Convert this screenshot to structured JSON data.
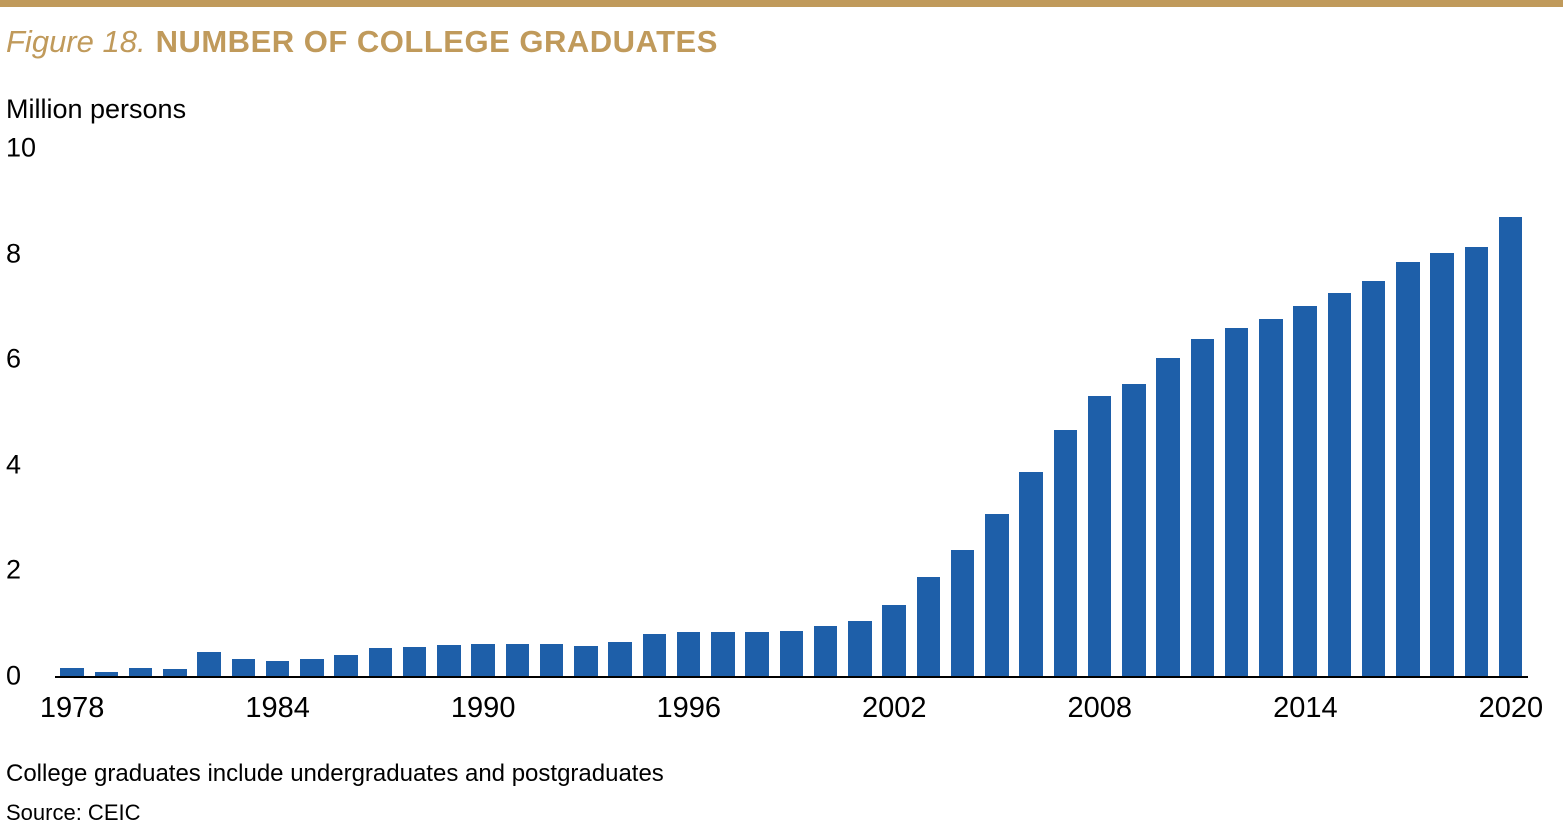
{
  "colors": {
    "accent_gold": "#C09A5B",
    "bar_blue": "#1E5FA9",
    "axis_black": "#000000"
  },
  "header": {
    "figure_label": "Figure 18.",
    "title": "NUMBER OF COLLEGE GRADUATES"
  },
  "footnotes": {
    "note": "College graduates include undergraduates and postgraduates",
    "source": "Source: CEIC"
  },
  "chart_data": {
    "type": "bar",
    "title": "Figure 18. NUMBER OF COLLEGE GRADUATES",
    "ylabel": "Million persons",
    "xlabel": "",
    "ylim": [
      0,
      10
    ],
    "grid": false,
    "legend": "none",
    "bar_color": "#1E5FA9",
    "x": [
      1978,
      1979,
      1980,
      1981,
      1982,
      1983,
      1984,
      1985,
      1986,
      1987,
      1988,
      1989,
      1990,
      1991,
      1992,
      1993,
      1994,
      1995,
      1996,
      1997,
      1998,
      1999,
      2000,
      2001,
      2002,
      2003,
      2004,
      2005,
      2006,
      2007,
      2008,
      2009,
      2010,
      2011,
      2012,
      2013,
      2014,
      2015,
      2016,
      2017,
      2018,
      2019,
      2020
    ],
    "values": [
      0.16,
      0.08,
      0.15,
      0.14,
      0.45,
      0.33,
      0.29,
      0.32,
      0.39,
      0.53,
      0.55,
      0.58,
      0.61,
      0.61,
      0.6,
      0.57,
      0.64,
      0.8,
      0.84,
      0.83,
      0.83,
      0.85,
      0.95,
      1.04,
      1.34,
      1.88,
      2.39,
      3.07,
      3.87,
      4.66,
      5.3,
      5.53,
      6.03,
      6.38,
      6.6,
      6.77,
      7.0,
      7.26,
      7.49,
      7.84,
      8.01,
      8.13,
      8.7
    ],
    "x_ticks": [
      1978,
      1984,
      1990,
      1996,
      2002,
      2008,
      2014,
      2020
    ],
    "y_ticks": [
      0,
      2,
      4,
      6,
      8,
      10
    ]
  }
}
